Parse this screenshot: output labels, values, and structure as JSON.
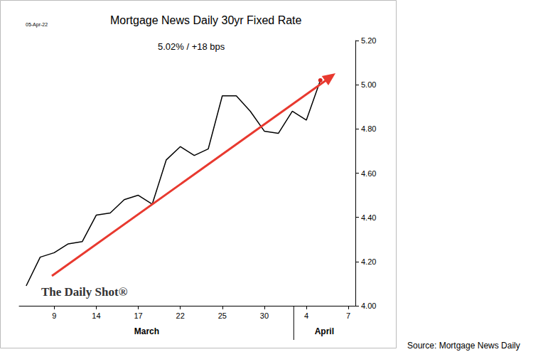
{
  "chart_data": {
    "type": "line",
    "title": "Mortgage News Daily 30yr Fixed Rate",
    "subtitle": "5.02% / +18 bps",
    "date": "05-Apr-22",
    "categories": [
      null,
      null,
      "9",
      null,
      null,
      "14",
      null,
      null,
      "17",
      null,
      null,
      "22",
      null,
      null,
      "25",
      null,
      null,
      "30",
      null,
      null,
      "4",
      null,
      null,
      "7"
    ],
    "values": [
      4.09,
      4.22,
      4.24,
      4.28,
      4.29,
      4.41,
      4.42,
      4.48,
      4.5,
      4.46,
      4.66,
      4.72,
      4.68,
      4.71,
      4.95,
      4.95,
      4.88,
      4.79,
      4.78,
      4.88,
      4.84,
      5.02,
      null,
      null
    ],
    "color": "#000000",
    "ylim": [
      4,
      5.2
    ],
    "yticks": [
      {
        "value": 4,
        "label": "4.00"
      },
      {
        "value": 4.2,
        "label": "4.20"
      },
      {
        "value": 4.4,
        "label": "4.40"
      },
      {
        "value": 4.6,
        "label": "4.60"
      },
      {
        "value": 4.8,
        "label": "4.80"
      },
      {
        "value": 5,
        "label": "5.00"
      },
      {
        "value": 5.2,
        "label": "5.20"
      }
    ],
    "grid": false,
    "month_labels": [
      "March",
      "April"
    ],
    "annotations": [
      "The Daily Shot®"
    ],
    "source": "Source: Mortgage News Daily"
  }
}
